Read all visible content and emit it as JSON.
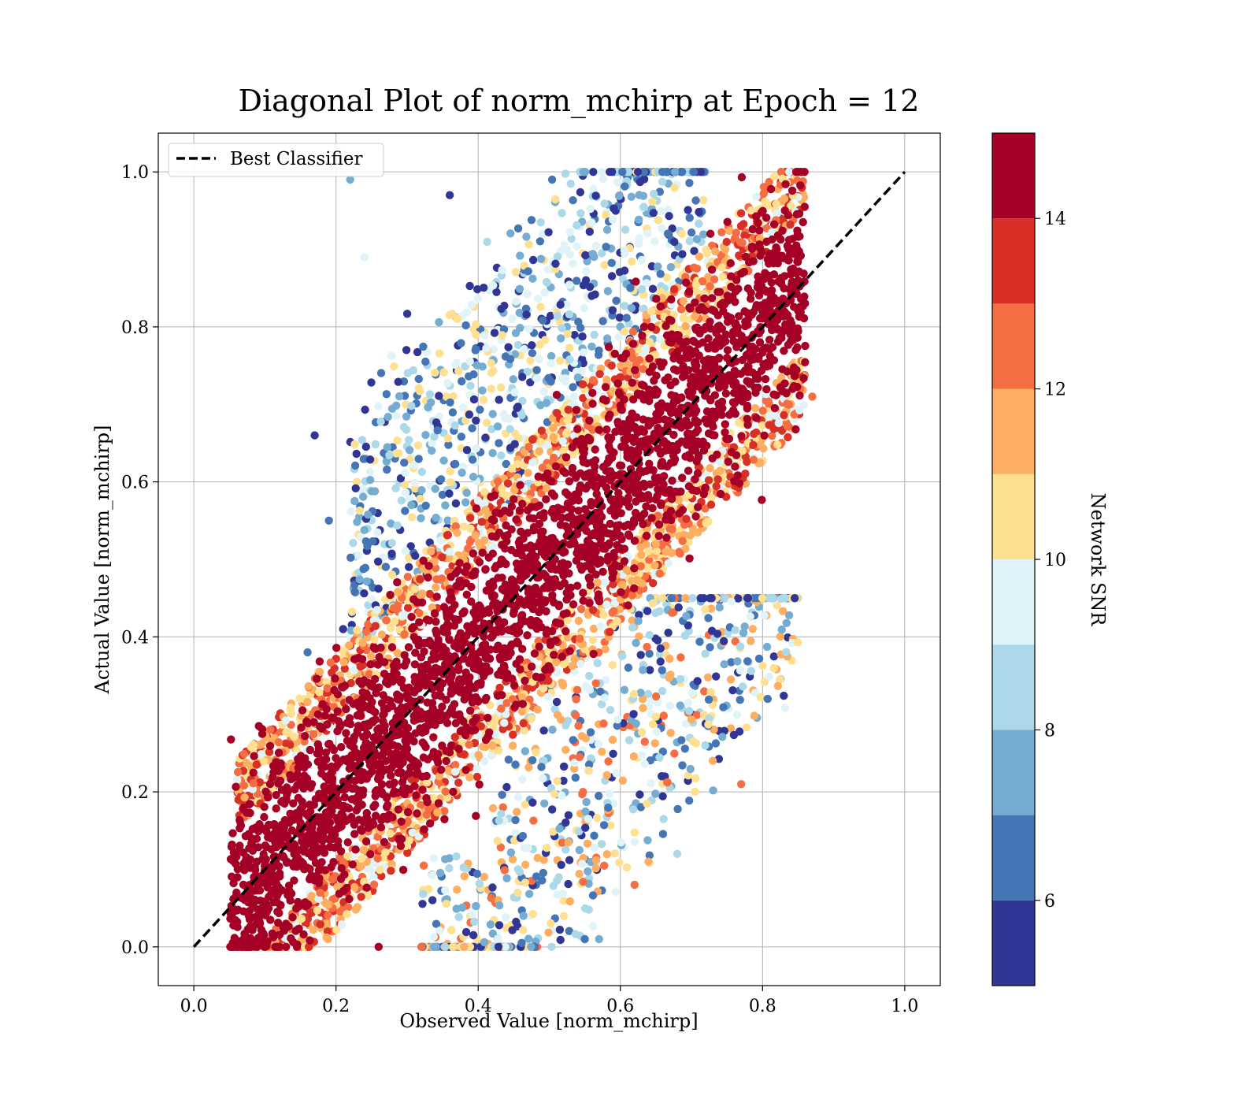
{
  "chart_data": {
    "type": "scatter",
    "title": "Diagonal Plot of norm_mchirp at Epoch = 12",
    "xlabel": "Observed Value [norm_mchirp]",
    "ylabel": "Actual Value [norm_mchirp]",
    "xlim": [
      -0.05,
      1.05
    ],
    "ylim": [
      -0.05,
      1.05
    ],
    "xticks": [
      0.0,
      0.2,
      0.4,
      0.6,
      0.8,
      1.0
    ],
    "yticks": [
      0.0,
      0.2,
      0.4,
      0.6,
      0.8,
      1.0
    ],
    "xtick_labels": [
      "0.0",
      "0.2",
      "0.4",
      "0.6",
      "0.8",
      "1.0"
    ],
    "ytick_labels": [
      "0.0",
      "0.2",
      "0.4",
      "0.6",
      "0.8",
      "1.0"
    ],
    "grid": true,
    "legend": {
      "position": "top-left",
      "entries": [
        {
          "label": "Best Classifier",
          "style": "black dashed line"
        }
      ]
    },
    "reference_line": {
      "label": "Best Classifier",
      "x": [
        0.0,
        1.0
      ],
      "y": [
        0.0,
        1.0
      ],
      "color": "#000000",
      "style": "dashed"
    },
    "colorbar": {
      "label": "Network SNR",
      "range": [
        5,
        15
      ],
      "boundaries": [
        5,
        6,
        7,
        8,
        9,
        10,
        11,
        12,
        13,
        14,
        15
      ],
      "ticks": [
        6,
        8,
        10,
        12,
        14
      ],
      "tick_labels": [
        "6",
        "8",
        "10",
        "12",
        "14"
      ],
      "colors": [
        "#313695",
        "#4575b4",
        "#74add1",
        "#abd9e9",
        "#e0f3f8",
        "#fee090",
        "#fdae61",
        "#f46d43",
        "#d73027",
        "#a50026"
      ]
    },
    "scatter_summary": {
      "description_of_distribution": "dense band of points along y = x",
      "high_snr_band": {
        "snr_min": 14,
        "x_range": [
          0.05,
          0.85
        ],
        "y_range": [
          0.0,
          1.0
        ],
        "half_width_y": 0.11
      },
      "low_snr_upper_cloud": {
        "snr_range": [
          5,
          10
        ],
        "x_range": [
          0.2,
          0.72
        ],
        "y_range": [
          0.4,
          1.0
        ]
      },
      "low_snr_lower_cloud": {
        "snr_range": [
          5,
          12
        ],
        "x_range": [
          0.3,
          0.85
        ],
        "y_range": [
          0.0,
          0.4
        ]
      }
    },
    "sample_points": [
      {
        "x": 0.06,
        "y": 0.07,
        "snr": 14.5
      },
      {
        "x": 0.1,
        "y": 0.11,
        "snr": 14.8
      },
      {
        "x": 0.15,
        "y": 0.16,
        "snr": 14.6
      },
      {
        "x": 0.2,
        "y": 0.19,
        "snr": 14.9
      },
      {
        "x": 0.25,
        "y": 0.26,
        "snr": 14.4
      },
      {
        "x": 0.3,
        "y": 0.31,
        "snr": 14.8
      },
      {
        "x": 0.35,
        "y": 0.34,
        "snr": 14.7
      },
      {
        "x": 0.4,
        "y": 0.41,
        "snr": 14.9
      },
      {
        "x": 0.45,
        "y": 0.44,
        "snr": 14.5
      },
      {
        "x": 0.5,
        "y": 0.51,
        "snr": 14.8
      },
      {
        "x": 0.55,
        "y": 0.54,
        "snr": 14.6
      },
      {
        "x": 0.6,
        "y": 0.61,
        "snr": 14.9
      },
      {
        "x": 0.65,
        "y": 0.66,
        "snr": 14.4
      },
      {
        "x": 0.7,
        "y": 0.71,
        "snr": 14.7
      },
      {
        "x": 0.75,
        "y": 0.76,
        "snr": 14.8
      },
      {
        "x": 0.8,
        "y": 0.82,
        "snr": 14.9
      },
      {
        "x": 0.82,
        "y": 0.9,
        "snr": 14.6
      },
      {
        "x": 0.87,
        "y": 0.71,
        "snr": 12.5
      },
      {
        "x": 0.77,
        "y": 0.21,
        "snr": 12.4
      },
      {
        "x": 0.73,
        "y": 0.24,
        "snr": 11.5
      },
      {
        "x": 0.68,
        "y": 0.12,
        "snr": 8.0
      },
      {
        "x": 0.62,
        "y": 0.08,
        "snr": 12.6
      },
      {
        "x": 0.22,
        "y": 0.99,
        "snr": 7.5
      },
      {
        "x": 0.24,
        "y": 0.89,
        "snr": 9.0
      },
      {
        "x": 0.17,
        "y": 0.66,
        "snr": 5.5
      },
      {
        "x": 0.19,
        "y": 0.55,
        "snr": 6.5
      },
      {
        "x": 0.16,
        "y": 0.38,
        "snr": 6.5
      },
      {
        "x": 0.21,
        "y": 0.41,
        "snr": 5.5
      },
      {
        "x": 0.26,
        "y": 0.0,
        "snr": 14.5
      },
      {
        "x": 0.07,
        "y": 0.01,
        "snr": 14.5
      },
      {
        "x": 0.85,
        "y": 0.86,
        "snr": 14.8
      },
      {
        "x": 0.36,
        "y": 0.97,
        "snr": 5.5
      },
      {
        "x": 0.55,
        "y": 0.01,
        "snr": 6.0
      },
      {
        "x": 0.57,
        "y": 0.01,
        "snr": 7.5
      }
    ]
  }
}
